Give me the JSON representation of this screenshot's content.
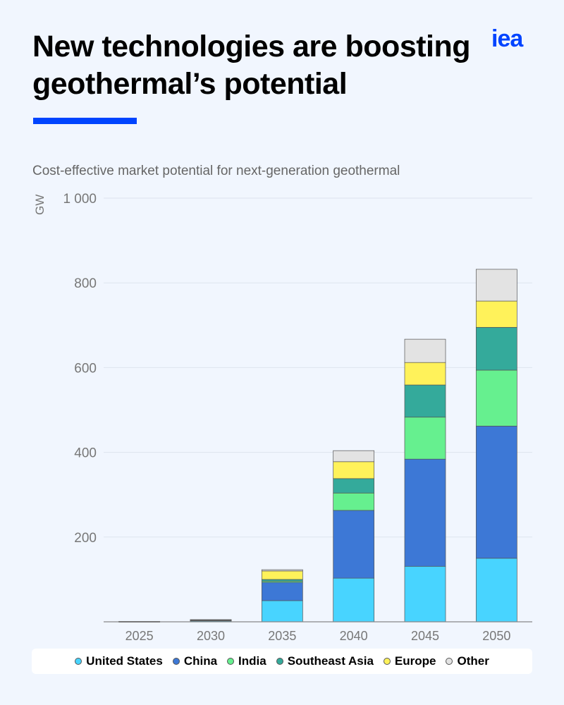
{
  "header": {
    "title": "New technologies are boosting geothermal’s potential",
    "logo": "iea",
    "accent": "#0044ff"
  },
  "chart_data": {
    "type": "bar",
    "stacked": true,
    "title": "Cost-effective market potential for next-generation geothermal",
    "ylabel": "GW",
    "ylim": [
      0,
      1000
    ],
    "yticks": [
      200,
      400,
      600,
      800,
      1000
    ],
    "ytick_labels": [
      "200",
      "400",
      "600",
      "800",
      "1 000"
    ],
    "grid": true,
    "legend_placement": "bottom",
    "categories": [
      "2025",
      "2030",
      "2035",
      "2040",
      "2045",
      "2050"
    ],
    "series": [
      {
        "name": "United States",
        "color": "#48d4ff",
        "values": [
          0.5,
          2,
          50,
          103,
          131,
          150
        ]
      },
      {
        "name": "China",
        "color": "#3d78d6",
        "values": [
          0.3,
          1.5,
          43,
          160,
          253,
          312
        ]
      },
      {
        "name": "India",
        "color": "#66f08f",
        "values": [
          0.1,
          0.5,
          3,
          41,
          99,
          132
        ]
      },
      {
        "name": "Southeast Asia",
        "color": "#34aa9b",
        "values": [
          0.1,
          0.5,
          4,
          34,
          76,
          101
        ]
      },
      {
        "name": "Europe",
        "color": "#fff25a",
        "values": [
          0.1,
          0.5,
          20,
          40,
          53,
          62
        ]
      },
      {
        "name": "Other",
        "color": "#e3e3e3",
        "values": [
          0,
          0.2,
          3,
          26,
          55,
          75
        ]
      }
    ]
  }
}
